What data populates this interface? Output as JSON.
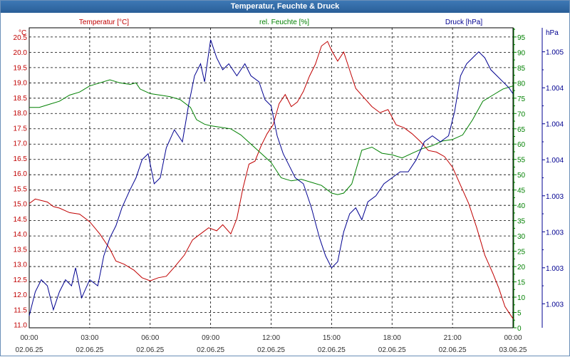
{
  "window": {
    "title": "Temperatur, Feuchte & Druck"
  },
  "colors": {
    "temperature": "#c00000",
    "humidity": "#008000",
    "pressure": "#000090",
    "grid": "#000000",
    "tick_text": "#333333"
  },
  "chart_data": {
    "type": "line",
    "title": "Temperatur, Feuchte & Druck",
    "xlabel": "",
    "axes": {
      "temperature": {
        "label": "Temperatur [°C]",
        "unit": "°C",
        "range": [
          10.9,
          20.8
        ],
        "ticks": [
          "11.0",
          "11.5",
          "12.0",
          "12.5",
          "13.0",
          "13.5",
          "14.0",
          "14.5",
          "15.0",
          "15.5",
          "16.0",
          "16.5",
          "17.0",
          "17.5",
          "18.0",
          "18.5",
          "19.0",
          "19.5",
          "20.0",
          "20.5"
        ]
      },
      "humidity": {
        "label": "rel. Feuchte [%]",
        "unit": "%",
        "range": [
          0,
          98
        ],
        "ticks": [
          "0",
          "5",
          "10",
          "15",
          "20",
          "25",
          "30",
          "35",
          "40",
          "45",
          "50",
          "55",
          "60",
          "65",
          "70",
          "75",
          "80",
          "85",
          "90",
          "95"
        ]
      },
      "pressure": {
        "label": "Druck [hPa]",
        "unit": "hPa",
        "range": [
          1002.7,
          1005.2
        ],
        "ticks": [
          {
            "value": 1002.9,
            "label": "1.003"
          },
          {
            "value": 1003.2,
            "label": "1.003"
          },
          {
            "value": 1003.5,
            "label": "1.003"
          },
          {
            "value": 1003.8,
            "label": "1.003"
          },
          {
            "value": 1004.1,
            "label": "1.004"
          },
          {
            "value": 1004.4,
            "label": "1.004"
          },
          {
            "value": 1004.7,
            "label": "1.004"
          },
          {
            "value": 1005.0,
            "label": "1.005"
          }
        ]
      }
    },
    "x_hours_range": [
      0,
      24
    ],
    "x_ticks": [
      {
        "hour": 0,
        "time": "00:00",
        "date": "02.06.25"
      },
      {
        "hour": 3,
        "time": "03:00",
        "date": "02.06.25"
      },
      {
        "hour": 6,
        "time": "06:00",
        "date": "02.06.25"
      },
      {
        "hour": 9,
        "time": "09:00",
        "date": "02.06.25"
      },
      {
        "hour": 12,
        "time": "12:00",
        "date": "02.06.25"
      },
      {
        "hour": 15,
        "time": "15:00",
        "date": "02.06.25"
      },
      {
        "hour": 18,
        "time": "18:00",
        "date": "02.06.25"
      },
      {
        "hour": 21,
        "time": "21:00",
        "date": "02.06.25"
      },
      {
        "hour": 24,
        "time": "00:00",
        "date": "03.06.25"
      }
    ],
    "grid": true,
    "series": [
      {
        "name": "Temperatur [°C]",
        "axis": "temperature",
        "points": [
          [
            0,
            15.0
          ],
          [
            0.3,
            15.15
          ],
          [
            0.6,
            15.1
          ],
          [
            0.9,
            15.05
          ],
          [
            1.2,
            14.9
          ],
          [
            1.5,
            14.85
          ],
          [
            2.0,
            14.7
          ],
          [
            2.5,
            14.65
          ],
          [
            3.0,
            14.4
          ],
          [
            3.5,
            14.0
          ],
          [
            4.0,
            13.5
          ],
          [
            4.3,
            13.1
          ],
          [
            4.7,
            13.0
          ],
          [
            5.2,
            12.8
          ],
          [
            5.6,
            12.55
          ],
          [
            6.0,
            12.45
          ],
          [
            6.4,
            12.55
          ],
          [
            6.8,
            12.6
          ],
          [
            7.2,
            12.9
          ],
          [
            7.7,
            13.3
          ],
          [
            8.1,
            13.8
          ],
          [
            8.5,
            14.0
          ],
          [
            8.9,
            14.2
          ],
          [
            9.3,
            14.1
          ],
          [
            9.6,
            14.3
          ],
          [
            10.0,
            14.0
          ],
          [
            10.3,
            14.5
          ],
          [
            10.6,
            15.5
          ],
          [
            10.9,
            16.3
          ],
          [
            11.2,
            16.4
          ],
          [
            11.5,
            16.9
          ],
          [
            11.8,
            17.3
          ],
          [
            12.1,
            17.6
          ],
          [
            12.4,
            18.3
          ],
          [
            12.7,
            18.6
          ],
          [
            13.0,
            18.2
          ],
          [
            13.3,
            18.35
          ],
          [
            13.6,
            18.7
          ],
          [
            13.9,
            19.2
          ],
          [
            14.2,
            19.6
          ],
          [
            14.5,
            20.2
          ],
          [
            14.8,
            20.35
          ],
          [
            15.0,
            20.05
          ],
          [
            15.3,
            19.7
          ],
          [
            15.6,
            20.0
          ],
          [
            15.9,
            19.4
          ],
          [
            16.2,
            18.8
          ],
          [
            16.6,
            18.5
          ],
          [
            17.0,
            18.2
          ],
          [
            17.4,
            18.0
          ],
          [
            17.8,
            18.1
          ],
          [
            18.2,
            17.6
          ],
          [
            18.6,
            17.5
          ],
          [
            19.0,
            17.3
          ],
          [
            19.4,
            17.05
          ],
          [
            19.8,
            16.75
          ],
          [
            20.2,
            16.7
          ],
          [
            20.6,
            16.55
          ],
          [
            21.0,
            16.2
          ],
          [
            21.4,
            15.6
          ],
          [
            21.8,
            15.0
          ],
          [
            22.2,
            14.2
          ],
          [
            22.6,
            13.3
          ],
          [
            23.0,
            12.7
          ],
          [
            23.3,
            12.2
          ],
          [
            23.6,
            11.6
          ],
          [
            23.8,
            11.4
          ],
          [
            24.0,
            11.2
          ]
        ]
      },
      {
        "name": "rel. Feuchte [%]",
        "axis": "humidity",
        "points": [
          [
            0,
            72
          ],
          [
            0.5,
            72
          ],
          [
            1.0,
            73
          ],
          [
            1.5,
            74
          ],
          [
            2.0,
            76
          ],
          [
            2.5,
            77
          ],
          [
            3.0,
            79
          ],
          [
            3.5,
            80
          ],
          [
            4.0,
            81
          ],
          [
            4.5,
            80
          ],
          [
            5.0,
            79.5
          ],
          [
            5.3,
            80
          ],
          [
            5.5,
            78
          ],
          [
            6.0,
            76.5
          ],
          [
            6.5,
            76
          ],
          [
            7.0,
            75.5
          ],
          [
            7.5,
            74.5
          ],
          [
            8.0,
            72
          ],
          [
            8.3,
            68
          ],
          [
            8.7,
            66.5
          ],
          [
            9.0,
            66
          ],
          [
            9.5,
            65.5
          ],
          [
            10.0,
            65
          ],
          [
            10.5,
            63
          ],
          [
            11.0,
            60
          ],
          [
            11.5,
            57
          ],
          [
            12.0,
            54
          ],
          [
            12.5,
            49
          ],
          [
            13.0,
            48
          ],
          [
            13.5,
            48.5
          ],
          [
            14.0,
            47.5
          ],
          [
            14.5,
            46.5
          ],
          [
            15.0,
            44
          ],
          [
            15.3,
            43.5
          ],
          [
            15.6,
            44
          ],
          [
            16.0,
            47
          ],
          [
            16.5,
            58
          ],
          [
            17.0,
            59
          ],
          [
            17.5,
            57
          ],
          [
            18.0,
            56.5
          ],
          [
            18.5,
            55.5
          ],
          [
            19.0,
            57
          ],
          [
            19.5,
            58.5
          ],
          [
            20.0,
            59.5
          ],
          [
            20.5,
            61
          ],
          [
            21.0,
            61.5
          ],
          [
            21.5,
            63
          ],
          [
            22.0,
            68
          ],
          [
            22.5,
            74
          ],
          [
            23.0,
            76
          ],
          [
            23.5,
            78
          ],
          [
            24.0,
            79
          ]
        ]
      },
      {
        "name": "Druck [hPa]",
        "axis": "pressure",
        "points": [
          [
            0,
            1002.8
          ],
          [
            0.3,
            1003.0
          ],
          [
            0.6,
            1003.1
          ],
          [
            0.9,
            1003.05
          ],
          [
            1.2,
            1002.85
          ],
          [
            1.5,
            1003.0
          ],
          [
            1.8,
            1003.1
          ],
          [
            2.1,
            1003.05
          ],
          [
            2.3,
            1003.2
          ],
          [
            2.6,
            1002.95
          ],
          [
            3.0,
            1003.1
          ],
          [
            3.4,
            1003.05
          ],
          [
            3.7,
            1003.3
          ],
          [
            4.0,
            1003.45
          ],
          [
            4.3,
            1003.55
          ],
          [
            4.6,
            1003.7
          ],
          [
            5.0,
            1003.85
          ],
          [
            5.3,
            1003.95
          ],
          [
            5.6,
            1004.1
          ],
          [
            5.9,
            1004.15
          ],
          [
            6.2,
            1003.9
          ],
          [
            6.5,
            1003.95
          ],
          [
            6.8,
            1004.2
          ],
          [
            7.2,
            1004.35
          ],
          [
            7.6,
            1004.25
          ],
          [
            7.9,
            1004.55
          ],
          [
            8.2,
            1004.8
          ],
          [
            8.5,
            1004.9
          ],
          [
            8.7,
            1004.75
          ],
          [
            9.0,
            1005.1
          ],
          [
            9.3,
            1004.95
          ],
          [
            9.6,
            1004.85
          ],
          [
            9.9,
            1004.9
          ],
          [
            10.3,
            1004.8
          ],
          [
            10.7,
            1004.9
          ],
          [
            11.0,
            1004.8
          ],
          [
            11.4,
            1004.75
          ],
          [
            11.7,
            1004.6
          ],
          [
            12.0,
            1004.55
          ],
          [
            12.3,
            1004.3
          ],
          [
            12.6,
            1004.15
          ],
          [
            12.9,
            1004.05
          ],
          [
            13.2,
            1003.95
          ],
          [
            13.6,
            1003.9
          ],
          [
            14.0,
            1003.7
          ],
          [
            14.4,
            1003.45
          ],
          [
            14.7,
            1003.3
          ],
          [
            15.0,
            1003.2
          ],
          [
            15.3,
            1003.25
          ],
          [
            15.6,
            1003.5
          ],
          [
            15.9,
            1003.65
          ],
          [
            16.2,
            1003.7
          ],
          [
            16.5,
            1003.6
          ],
          [
            16.8,
            1003.75
          ],
          [
            17.2,
            1003.8
          ],
          [
            17.6,
            1003.9
          ],
          [
            18.0,
            1003.95
          ],
          [
            18.4,
            1004.0
          ],
          [
            18.8,
            1004.0
          ],
          [
            19.2,
            1004.1
          ],
          [
            19.6,
            1004.25
          ],
          [
            20.0,
            1004.3
          ],
          [
            20.4,
            1004.25
          ],
          [
            20.8,
            1004.3
          ],
          [
            21.1,
            1004.5
          ],
          [
            21.4,
            1004.8
          ],
          [
            21.7,
            1004.9
          ],
          [
            22.0,
            1004.95
          ],
          [
            22.3,
            1005.0
          ],
          [
            22.6,
            1004.95
          ],
          [
            22.9,
            1004.85
          ],
          [
            23.2,
            1004.8
          ],
          [
            23.5,
            1004.75
          ],
          [
            23.8,
            1004.7
          ],
          [
            24.0,
            1004.65
          ]
        ]
      }
    ]
  }
}
